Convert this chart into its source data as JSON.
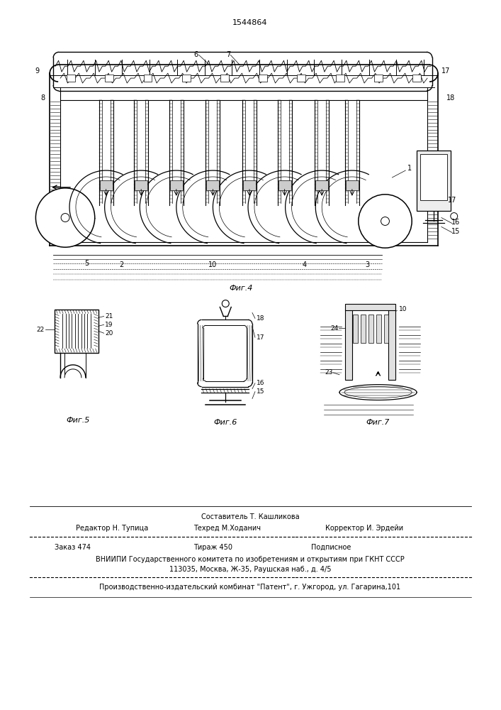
{
  "patent_number": "1544864",
  "bg": "#ffffff",
  "lc": "#1a1a1a",
  "footer": {
    "sestavitel": "Составитель Т. Кашликова",
    "redaktor": "Редактор Н. Тупица",
    "tehred": "Техред М.Ходанич",
    "korrektor": "Корректор И. Эрдейи",
    "zakaz": "Заказ 474",
    "tirazh": "Тираж 450",
    "podpisnoe": "Подписное",
    "vniip1": "ВНИИПИ Государственного комитета по изобретениям и открытиям при ГКНТ СССР",
    "vniip2": "113035, Москва, Ж-35, Раушская наб., д. 4/5",
    "proizv": "Производственно-издательский комбинат \"Патент\", г. Ужгород, ул. Гагарина,101"
  }
}
